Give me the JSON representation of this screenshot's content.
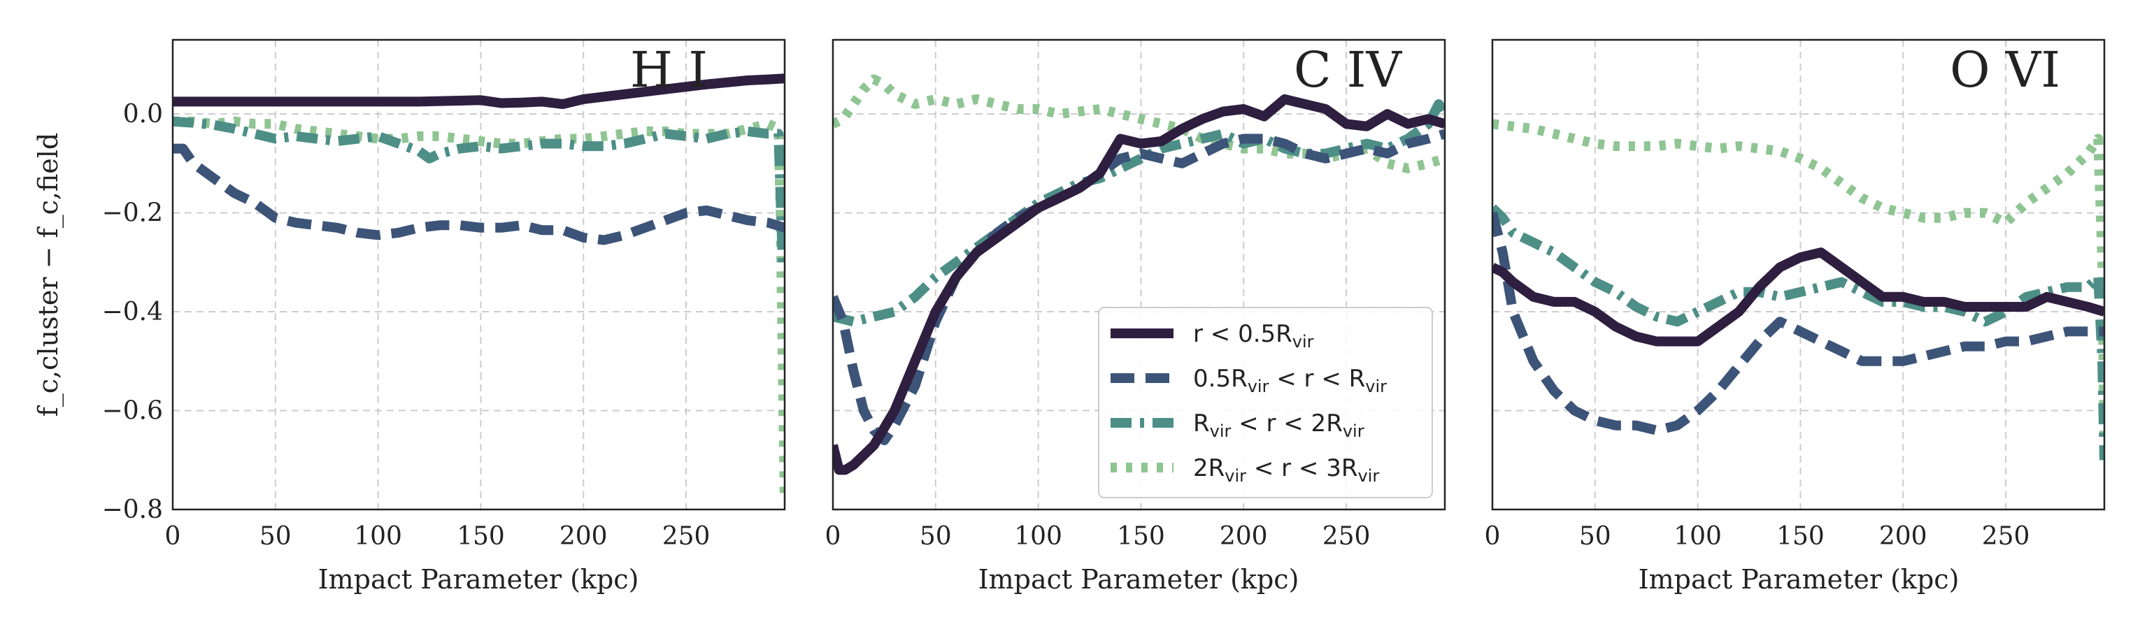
{
  "chart_data": [
    {
      "type": "line",
      "title": "H I",
      "xlabel": "Impact Parameter (kpc)",
      "ylabel": "f_c,cluster − f_c,field",
      "xlim": [
        0,
        298
      ],
      "ylim": [
        -0.8,
        0.15
      ],
      "xticks": [
        "0",
        "50",
        "100",
        "150",
        "200",
        "250"
      ],
      "yticks": [
        "0.0",
        "−0.2",
        "−0.4",
        "−0.6",
        "−0.8"
      ],
      "grid": true,
      "series": [
        {
          "key": "s1",
          "x": [
            0,
            20,
            40,
            60,
            80,
            100,
            120,
            140,
            150,
            160,
            170,
            180,
            190,
            200,
            220,
            240,
            260,
            280,
            290,
            298
          ],
          "y": [
            0.025,
            0.025,
            0.025,
            0.025,
            0.025,
            0.025,
            0.025,
            0.027,
            0.028,
            0.022,
            0.023,
            0.025,
            0.02,
            0.03,
            0.04,
            0.05,
            0.06,
            0.068,
            0.07,
            0.072
          ]
        },
        {
          "key": "s2",
          "x": [
            0,
            5,
            10,
            20,
            30,
            40,
            50,
            60,
            70,
            80,
            90,
            100,
            110,
            120,
            130,
            140,
            150,
            160,
            170,
            180,
            190,
            200,
            210,
            220,
            230,
            240,
            250,
            260,
            270,
            280,
            290,
            298
          ],
          "y": [
            -0.07,
            -0.07,
            -0.1,
            -0.13,
            -0.16,
            -0.18,
            -0.21,
            -0.22,
            -0.225,
            -0.23,
            -0.24,
            -0.245,
            -0.24,
            -0.23,
            -0.225,
            -0.225,
            -0.23,
            -0.23,
            -0.225,
            -0.235,
            -0.235,
            -0.25,
            -0.255,
            -0.245,
            -0.23,
            -0.215,
            -0.2,
            -0.195,
            -0.205,
            -0.215,
            -0.22,
            -0.23
          ]
        },
        {
          "key": "s3",
          "x": [
            0,
            10,
            20,
            30,
            40,
            50,
            60,
            70,
            80,
            90,
            100,
            110,
            120,
            125,
            130,
            140,
            150,
            160,
            170,
            180,
            190,
            200,
            210,
            220,
            230,
            240,
            250,
            260,
            270,
            280,
            290,
            295,
            297
          ],
          "y": [
            -0.015,
            -0.018,
            -0.022,
            -0.03,
            -0.04,
            -0.05,
            -0.045,
            -0.05,
            -0.055,
            -0.05,
            -0.045,
            -0.06,
            -0.075,
            -0.09,
            -0.08,
            -0.07,
            -0.065,
            -0.07,
            -0.065,
            -0.06,
            -0.06,
            -0.065,
            -0.065,
            -0.06,
            -0.05,
            -0.04,
            -0.045,
            -0.05,
            -0.04,
            -0.035,
            -0.04,
            -0.04,
            -0.3
          ]
        },
        {
          "key": "s4",
          "x": [
            0,
            10,
            20,
            30,
            40,
            50,
            60,
            70,
            80,
            90,
            100,
            110,
            120,
            130,
            140,
            150,
            160,
            170,
            180,
            190,
            200,
            210,
            220,
            230,
            240,
            250,
            260,
            270,
            280,
            290,
            295,
            296,
            297,
            298
          ],
          "y": [
            -0.015,
            -0.015,
            -0.02,
            -0.015,
            -0.02,
            -0.02,
            -0.03,
            -0.035,
            -0.04,
            -0.045,
            -0.05,
            -0.05,
            -0.045,
            -0.045,
            -0.05,
            -0.055,
            -0.06,
            -0.06,
            -0.055,
            -0.05,
            -0.05,
            -0.045,
            -0.04,
            -0.035,
            -0.035,
            -0.04,
            -0.04,
            -0.04,
            -0.03,
            -0.02,
            -0.03,
            -0.2,
            -0.5,
            -0.78
          ]
        }
      ]
    },
    {
      "type": "line",
      "title": "C IV",
      "xlabel": "Impact Parameter (kpc)",
      "xlim": [
        0,
        298
      ],
      "ylim": [
        -0.8,
        0.15
      ],
      "xticks": [
        "0",
        "50",
        "100",
        "150",
        "200",
        "250"
      ],
      "grid": true,
      "legend": {
        "placement": "lower-right",
        "entries": [
          {
            "key": "s1",
            "label": "r < 0.5R",
            "label_sub": "vir"
          },
          {
            "key": "s2",
            "label": "0.5R",
            "label_sub": "vir",
            "label_mid": " < r < R",
            "label_sub2": "vir"
          },
          {
            "key": "s3",
            "label": "R",
            "label_sub": "vir",
            "label_mid": " < r < 2R",
            "label_sub2": "vir"
          },
          {
            "key": "s4",
            "label": "2R",
            "label_sub": "vir",
            "label_mid": " < r < 3R",
            "label_sub2": "vir"
          }
        ]
      },
      "series": [
        {
          "key": "s1",
          "x": [
            0,
            3,
            6,
            10,
            20,
            30,
            40,
            50,
            60,
            70,
            80,
            90,
            100,
            110,
            120,
            130,
            140,
            150,
            160,
            170,
            180,
            190,
            200,
            210,
            220,
            230,
            240,
            250,
            260,
            270,
            280,
            290,
            298
          ],
          "y": [
            -0.67,
            -0.72,
            -0.72,
            -0.71,
            -0.67,
            -0.6,
            -0.5,
            -0.4,
            -0.33,
            -0.28,
            -0.25,
            -0.22,
            -0.19,
            -0.17,
            -0.15,
            -0.12,
            -0.05,
            -0.06,
            -0.055,
            -0.03,
            -0.01,
            0.005,
            0.01,
            -0.005,
            0.03,
            0.02,
            0.01,
            -0.02,
            -0.025,
            0.0,
            -0.02,
            -0.01,
            -0.02
          ]
        },
        {
          "key": "s2",
          "x": [
            0,
            5,
            10,
            15,
            20,
            25,
            30,
            40,
            50,
            60,
            70,
            80,
            90,
            100,
            110,
            120,
            130,
            140,
            150,
            160,
            170,
            180,
            190,
            200,
            210,
            220,
            230,
            240,
            250,
            260,
            270,
            280,
            290,
            298
          ],
          "y": [
            -0.37,
            -0.42,
            -0.52,
            -0.6,
            -0.64,
            -0.66,
            -0.63,
            -0.55,
            -0.42,
            -0.33,
            -0.28,
            -0.24,
            -0.21,
            -0.19,
            -0.17,
            -0.15,
            -0.12,
            -0.09,
            -0.08,
            -0.09,
            -0.1,
            -0.08,
            -0.06,
            -0.05,
            -0.05,
            -0.06,
            -0.08,
            -0.09,
            -0.08,
            -0.07,
            -0.08,
            -0.06,
            -0.05,
            -0.04
          ]
        },
        {
          "key": "s3",
          "x": [
            0,
            10,
            20,
            30,
            40,
            50,
            60,
            70,
            80,
            90,
            100,
            110,
            120,
            130,
            140,
            150,
            160,
            170,
            180,
            190,
            200,
            210,
            220,
            230,
            240,
            250,
            260,
            270,
            280,
            290,
            295,
            298
          ],
          "y": [
            -0.41,
            -0.42,
            -0.41,
            -0.4,
            -0.37,
            -0.33,
            -0.3,
            -0.27,
            -0.24,
            -0.21,
            -0.18,
            -0.16,
            -0.14,
            -0.13,
            -0.11,
            -0.09,
            -0.07,
            -0.06,
            -0.05,
            -0.04,
            -0.06,
            -0.05,
            -0.07,
            -0.08,
            -0.08,
            -0.07,
            -0.06,
            -0.07,
            -0.05,
            -0.02,
            0.02,
            0.0
          ]
        },
        {
          "key": "s4",
          "x": [
            0,
            5,
            10,
            15,
            20,
            25,
            30,
            40,
            50,
            60,
            70,
            80,
            90,
            100,
            110,
            120,
            130,
            140,
            150,
            160,
            170,
            180,
            190,
            200,
            210,
            220,
            230,
            240,
            250,
            260,
            270,
            280,
            290,
            298
          ],
          "y": [
            -0.02,
            -0.01,
            0.02,
            0.05,
            0.07,
            0.06,
            0.04,
            0.02,
            0.03,
            0.02,
            0.03,
            0.02,
            0.01,
            0.01,
            0.0,
            0.005,
            0.01,
            0.0,
            -0.01,
            -0.02,
            -0.03,
            -0.05,
            -0.06,
            -0.07,
            -0.07,
            -0.08,
            -0.08,
            -0.09,
            -0.08,
            -0.07,
            -0.1,
            -0.11,
            -0.1,
            -0.09
          ]
        }
      ]
    },
    {
      "type": "line",
      "title": "O VI",
      "xlabel": "Impact Parameter (kpc)",
      "xlim": [
        0,
        298
      ],
      "ylim": [
        -0.8,
        0.15
      ],
      "xticks": [
        "0",
        "50",
        "100",
        "150",
        "200",
        "250"
      ],
      "grid": true,
      "series": [
        {
          "key": "s1",
          "x": [
            0,
            5,
            10,
            20,
            30,
            40,
            50,
            60,
            70,
            80,
            90,
            100,
            110,
            120,
            130,
            140,
            150,
            160,
            170,
            180,
            190,
            200,
            210,
            220,
            230,
            240,
            250,
            260,
            270,
            280,
            290,
            298
          ],
          "y": [
            -0.31,
            -0.32,
            -0.34,
            -0.37,
            -0.38,
            -0.38,
            -0.4,
            -0.43,
            -0.45,
            -0.46,
            -0.46,
            -0.46,
            -0.43,
            -0.4,
            -0.35,
            -0.31,
            -0.29,
            -0.28,
            -0.31,
            -0.34,
            -0.37,
            -0.37,
            -0.38,
            -0.38,
            -0.39,
            -0.39,
            -0.39,
            -0.39,
            -0.37,
            -0.38,
            -0.39,
            -0.4
          ]
        },
        {
          "key": "s2",
          "x": [
            0,
            5,
            10,
            20,
            30,
            40,
            50,
            60,
            70,
            80,
            90,
            100,
            110,
            120,
            130,
            140,
            150,
            160,
            170,
            180,
            190,
            200,
            210,
            220,
            230,
            240,
            250,
            260,
            270,
            280,
            290,
            298
          ],
          "y": [
            -0.2,
            -0.28,
            -0.4,
            -0.5,
            -0.56,
            -0.6,
            -0.62,
            -0.63,
            -0.63,
            -0.64,
            -0.63,
            -0.6,
            -0.56,
            -0.51,
            -0.46,
            -0.42,
            -0.44,
            -0.46,
            -0.48,
            -0.5,
            -0.5,
            -0.5,
            -0.49,
            -0.48,
            -0.47,
            -0.47,
            -0.46,
            -0.46,
            -0.45,
            -0.44,
            -0.44,
            -0.44
          ]
        },
        {
          "key": "s3",
          "x": [
            0,
            5,
            10,
            20,
            30,
            40,
            50,
            60,
            70,
            80,
            90,
            100,
            110,
            120,
            130,
            140,
            150,
            160,
            170,
            180,
            190,
            200,
            210,
            220,
            230,
            240,
            250,
            260,
            270,
            280,
            290,
            295,
            297,
            298
          ],
          "y": [
            -0.19,
            -0.21,
            -0.24,
            -0.26,
            -0.28,
            -0.31,
            -0.34,
            -0.36,
            -0.39,
            -0.41,
            -0.42,
            -0.4,
            -0.38,
            -0.36,
            -0.36,
            -0.37,
            -0.36,
            -0.35,
            -0.34,
            -0.36,
            -0.38,
            -0.38,
            -0.39,
            -0.39,
            -0.4,
            -0.42,
            -0.4,
            -0.37,
            -0.36,
            -0.35,
            -0.35,
            -0.33,
            -0.5,
            -0.7
          ]
        },
        {
          "key": "s4",
          "x": [
            0,
            10,
            20,
            30,
            40,
            50,
            60,
            70,
            80,
            90,
            100,
            110,
            120,
            130,
            140,
            150,
            160,
            170,
            180,
            190,
            200,
            210,
            220,
            230,
            240,
            250,
            260,
            270,
            280,
            290,
            295,
            297,
            298
          ],
          "y": [
            -0.02,
            -0.025,
            -0.03,
            -0.04,
            -0.05,
            -0.06,
            -0.065,
            -0.065,
            -0.065,
            -0.06,
            -0.065,
            -0.07,
            -0.065,
            -0.07,
            -0.075,
            -0.09,
            -0.11,
            -0.14,
            -0.17,
            -0.19,
            -0.2,
            -0.21,
            -0.21,
            -0.2,
            -0.2,
            -0.22,
            -0.18,
            -0.15,
            -0.12,
            -0.08,
            -0.05,
            -0.3,
            -0.65
          ]
        }
      ]
    }
  ],
  "series_styles": {
    "s1": {
      "color": "#2e1e3f",
      "dash": "solid"
    },
    "s2": {
      "color": "#3d5479",
      "dash": "dashed"
    },
    "s3": {
      "color": "#4d8f87",
      "dash": "dashdot"
    },
    "s4": {
      "color": "#8fc493",
      "dash": "dotted"
    }
  }
}
